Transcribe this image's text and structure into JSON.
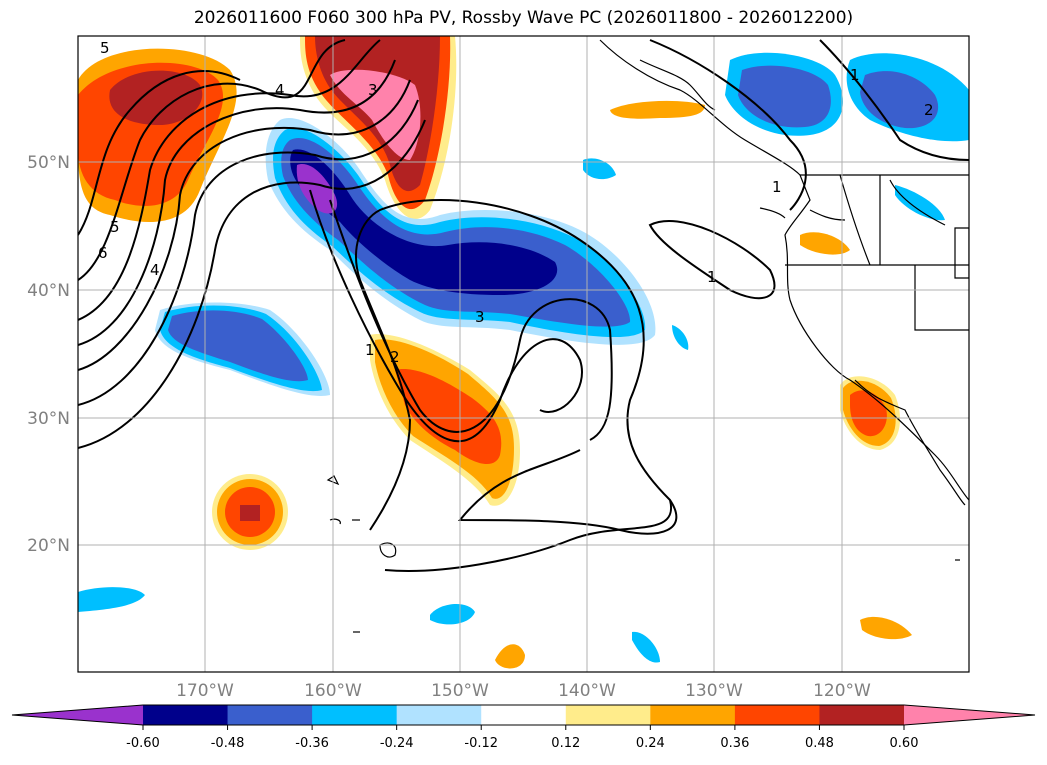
{
  "title": "2026011600 F060 300 hPa PV, Rossby Wave PC (2026011800 - 2026012200)",
  "lat_labels": [
    "50°N",
    "40°N",
    "30°N",
    "20°N"
  ],
  "lon_labels": [
    "170°W",
    "160°W",
    "150°W",
    "140°W",
    "130°W",
    "120°W"
  ],
  "colorbar": {
    "ticks": [
      "-0.60",
      "-0.48",
      "-0.36",
      "-0.24",
      "-0.12",
      "0.12",
      "0.24",
      "0.36",
      "0.48",
      "0.60"
    ],
    "colors": [
      "#9a32cd",
      "#00008b",
      "#3a5fcd",
      "#00bfff",
      "#b0e2ff",
      "#ffffff",
      "#ffec8b",
      "#ffa500",
      "#ff4500",
      "#b22222",
      "#ff82ab"
    ]
  },
  "contour_labels": [
    "5",
    "4",
    "5",
    "6",
    "4",
    "3",
    "1",
    "2",
    "3",
    "1",
    "1",
    "2",
    "1"
  ]
}
